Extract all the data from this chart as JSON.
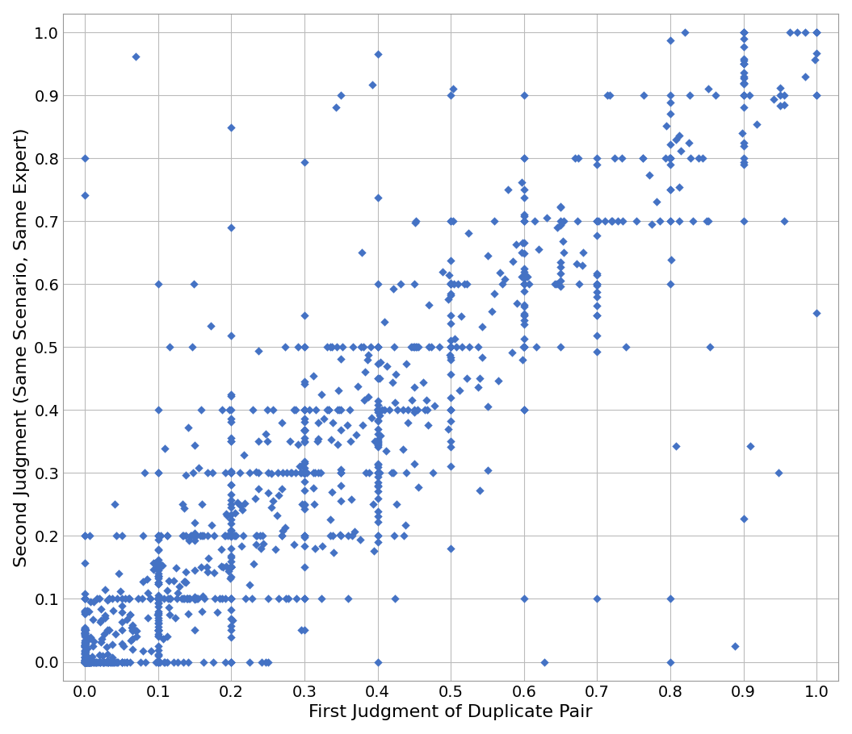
{
  "xlabel": "First Judgment of Duplicate Pair",
  "ylabel": "Second Judgment (Same Scenario, Same Expert)",
  "xlim": [
    -0.03,
    1.03
  ],
  "ylim": [
    -0.03,
    1.03
  ],
  "xticks": [
    0.0,
    0.1,
    0.2,
    0.3,
    0.4,
    0.5,
    0.6,
    0.7,
    0.8,
    0.9,
    1.0
  ],
  "yticks": [
    0.0,
    0.1,
    0.2,
    0.3,
    0.4,
    0.5,
    0.6,
    0.7,
    0.8,
    0.9,
    1.0
  ],
  "marker_color": "#4472C4",
  "marker": "D",
  "marker_size": 28,
  "background_color": "#ffffff",
  "grid_color": "#bbbbbb",
  "xlabel_fontsize": 16,
  "ylabel_fontsize": 16,
  "tick_fontsize": 14,
  "seed": 42,
  "n_points": 1200
}
